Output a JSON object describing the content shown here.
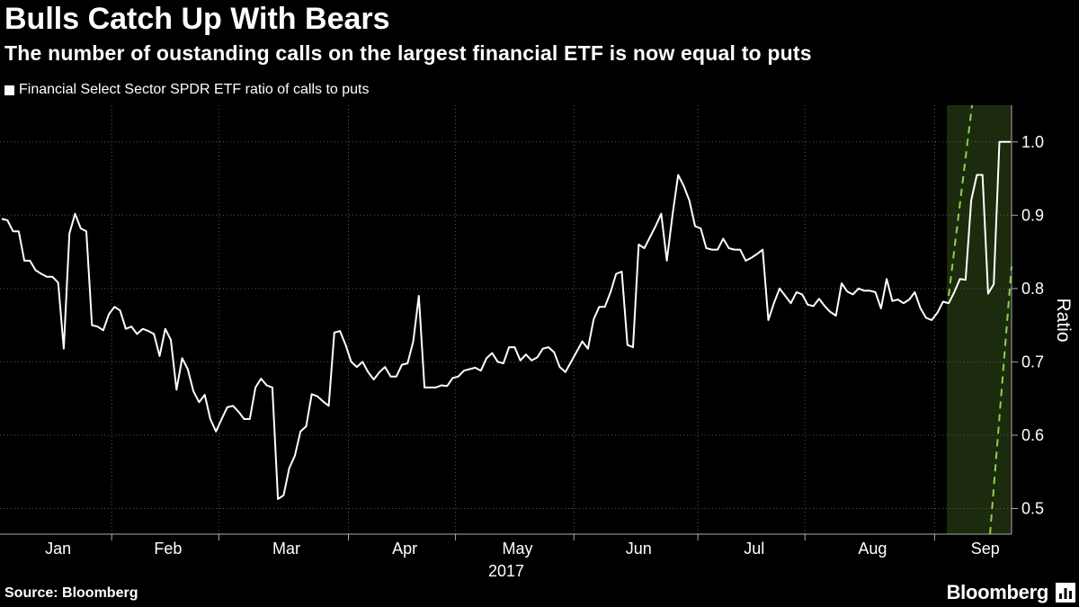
{
  "title": "Bulls Catch Up With Bears",
  "subtitle": "The number of oustanding calls on the largest financial ETF is now equal to puts",
  "source": "Source: Bloomberg",
  "brand": "Bloomberg",
  "colors": {
    "background": "#000000",
    "line": "#ffffff",
    "highlight": "#1c2a0e",
    "highlight_edge": "#8fd14f",
    "grid": "#5a5a5a"
  },
  "chart_data": {
    "type": "line",
    "title": "Bulls Catch Up With Bears",
    "legend": [
      "Financial Select Sector SPDR ETF ratio of calls to puts"
    ],
    "xlabel": "2017",
    "ylabel": "Ratio",
    "ylim": [
      0.465,
      1.05
    ],
    "yticks": [
      0.5,
      0.6,
      0.7,
      0.8,
      0.9,
      1.0
    ],
    "ytick_labels": [
      "0.5",
      "0.6",
      "0.7",
      "0.8",
      "0.9",
      "1.0"
    ],
    "months": [
      "Jan",
      "Feb",
      "Mar",
      "Apr",
      "May",
      "Jun",
      "Jul",
      "Aug",
      "Sep"
    ],
    "x_unit": "trading day index (0 = Jan 3, 2017)",
    "month_start_index": [
      0,
      20,
      39,
      62,
      81,
      102,
      124,
      143,
      166
    ],
    "highlight_range": [
      168,
      181
    ],
    "series": [
      {
        "name": "Financial Select Sector SPDR ETF ratio of calls to puts",
        "values": [
          0.895,
          0.893,
          0.878,
          0.878,
          0.838,
          0.838,
          0.825,
          0.82,
          0.816,
          0.816,
          0.808,
          0.718,
          0.875,
          0.902,
          0.882,
          0.878,
          0.75,
          0.748,
          0.743,
          0.765,
          0.775,
          0.77,
          0.745,
          0.748,
          0.738,
          0.745,
          0.742,
          0.738,
          0.708,
          0.745,
          0.73,
          0.662,
          0.705,
          0.69,
          0.66,
          0.645,
          0.655,
          0.622,
          0.605,
          0.622,
          0.638,
          0.64,
          0.632,
          0.622,
          0.622,
          0.665,
          0.677,
          0.668,
          0.665,
          0.513,
          0.518,
          0.555,
          0.572,
          0.605,
          0.612,
          0.656,
          0.653,
          0.646,
          0.64,
          0.74,
          0.742,
          0.723,
          0.7,
          0.693,
          0.7,
          0.686,
          0.676,
          0.686,
          0.693,
          0.68,
          0.68,
          0.696,
          0.698,
          0.728,
          0.79,
          0.665,
          0.665,
          0.665,
          0.668,
          0.667,
          0.678,
          0.68,
          0.688,
          0.69,
          0.692,
          0.688,
          0.705,
          0.712,
          0.7,
          0.698,
          0.72,
          0.72,
          0.702,
          0.71,
          0.702,
          0.706,
          0.718,
          0.72,
          0.713,
          0.693,
          0.686,
          0.7,
          0.714,
          0.728,
          0.718,
          0.758,
          0.775,
          0.775,
          0.795,
          0.82,
          0.823,
          0.723,
          0.72,
          0.86,
          0.855,
          0.87,
          0.885,
          0.902,
          0.838,
          0.9,
          0.955,
          0.94,
          0.92,
          0.885,
          0.882,
          0.855,
          0.853,
          0.853,
          0.868,
          0.855,
          0.853,
          0.853,
          0.838,
          0.842,
          0.847,
          0.853,
          0.757,
          0.78,
          0.8,
          0.79,
          0.78,
          0.795,
          0.792,
          0.778,
          0.776,
          0.786,
          0.776,
          0.768,
          0.763,
          0.807,
          0.796,
          0.792,
          0.8,
          0.797,
          0.797,
          0.795,
          0.773,
          0.813,
          0.783,
          0.785,
          0.78,
          0.785,
          0.795,
          0.773,
          0.76,
          0.757,
          0.767,
          0.782,
          0.78,
          0.795,
          0.813,
          0.812,
          0.92,
          0.955,
          0.955,
          0.793,
          0.806,
          1.0,
          1.0,
          1.0
        ]
      }
    ]
  }
}
